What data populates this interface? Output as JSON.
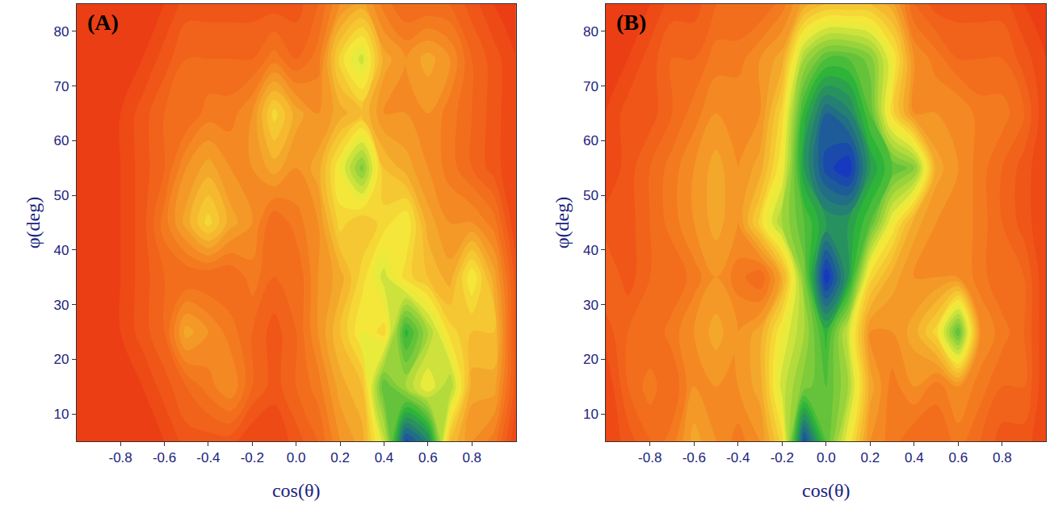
{
  "chart_data": [
    {
      "type": "contour",
      "label": "(A)",
      "x_label": "cos(θ)",
      "y_label": "φ(deg)",
      "xlim": [
        -1,
        1
      ],
      "ylim": [
        5,
        85
      ],
      "xticks": [
        -0.8,
        -0.6,
        -0.4,
        -0.2,
        {
          "value": 0,
          "label": "0.0"
        },
        0.2,
        0.4,
        0.6,
        0.8
      ],
      "yticks": [
        10,
        20,
        30,
        40,
        50,
        60,
        70,
        80
      ],
      "zlim": [
        0,
        1
      ],
      "x": [
        -1,
        -0.9,
        -0.8,
        -0.7,
        -0.6,
        -0.5,
        -0.4,
        -0.3,
        -0.2,
        -0.1,
        0,
        0.1,
        0.2,
        0.3,
        0.4,
        0.5,
        0.6,
        0.7,
        0.8,
        0.9,
        1
      ],
      "y": [
        5,
        15,
        25,
        35,
        45,
        55,
        65,
        75,
        85
      ],
      "z": [
        [
          0.1,
          0.1,
          0.1,
          0.1,
          0.1,
          0.15,
          0.15,
          0.15,
          0.1,
          0.1,
          0.15,
          0.2,
          0.3,
          0.35,
          0.55,
          0.95,
          0.85,
          0.4,
          0.3,
          0.25,
          0.1
        ],
        [
          0.1,
          0.1,
          0.1,
          0.1,
          0.15,
          0.2,
          0.25,
          0.3,
          0.2,
          0.15,
          0.2,
          0.25,
          0.35,
          0.4,
          0.7,
          0.6,
          0.5,
          0.6,
          0.35,
          0.35,
          0.15
        ],
        [
          0.1,
          0.1,
          0.1,
          0.15,
          0.2,
          0.35,
          0.3,
          0.25,
          0.2,
          0.15,
          0.2,
          0.3,
          0.4,
          0.5,
          0.45,
          0.75,
          0.6,
          0.45,
          0.4,
          0.4,
          0.15
        ],
        [
          0.1,
          0.1,
          0.1,
          0.15,
          0.2,
          0.2,
          0.2,
          0.2,
          0.25,
          0.2,
          0.2,
          0.3,
          0.35,
          0.45,
          0.55,
          0.45,
          0.4,
          0.35,
          0.5,
          0.35,
          0.15
        ],
        [
          0.1,
          0.1,
          0.1,
          0.15,
          0.25,
          0.35,
          0.45,
          0.35,
          0.3,
          0.2,
          0.25,
          0.3,
          0.45,
          0.4,
          0.45,
          0.5,
          0.35,
          0.3,
          0.3,
          0.25,
          0.1
        ],
        [
          0.1,
          0.1,
          0.1,
          0.15,
          0.2,
          0.3,
          0.35,
          0.3,
          0.3,
          0.35,
          0.3,
          0.35,
          0.5,
          0.65,
          0.4,
          0.35,
          0.3,
          0.25,
          0.2,
          0.15,
          0.1
        ],
        [
          0.1,
          0.1,
          0.1,
          0.15,
          0.2,
          0.2,
          0.25,
          0.25,
          0.3,
          0.45,
          0.35,
          0.3,
          0.35,
          0.4,
          0.3,
          0.3,
          0.3,
          0.25,
          0.2,
          0.15,
          0.1
        ],
        [
          0.1,
          0.1,
          0.1,
          0.1,
          0.15,
          0.2,
          0.2,
          0.2,
          0.2,
          0.25,
          0.2,
          0.25,
          0.45,
          0.55,
          0.35,
          0.3,
          0.35,
          0.3,
          0.2,
          0.15,
          0.1
        ],
        [
          0.1,
          0.1,
          0.1,
          0.1,
          0.1,
          0.15,
          0.15,
          0.15,
          0.15,
          0.15,
          0.15,
          0.2,
          0.3,
          0.35,
          0.25,
          0.2,
          0.2,
          0.2,
          0.15,
          0.1,
          0.1
        ]
      ]
    },
    {
      "type": "contour",
      "label": "(B)",
      "x_label": "cos(θ)",
      "y_label": "φ(deg)",
      "xlim": [
        -1,
        1
      ],
      "ylim": [
        5,
        85
      ],
      "xticks": [
        -0.8,
        -0.6,
        -0.4,
        -0.2,
        {
          "value": 0,
          "label": "0.0"
        },
        0.2,
        0.4,
        0.6,
        0.8
      ],
      "yticks": [
        10,
        20,
        30,
        40,
        50,
        60,
        70,
        80
      ],
      "zlim": [
        0,
        1
      ],
      "x": [
        -1,
        -0.9,
        -0.8,
        -0.7,
        -0.6,
        -0.5,
        -0.4,
        -0.3,
        -0.2,
        -0.1,
        0,
        0.1,
        0.2,
        0.3,
        0.4,
        0.5,
        0.6,
        0.7,
        0.8,
        0.9,
        1
      ],
      "y": [
        5,
        15,
        25,
        35,
        45,
        55,
        65,
        75,
        85
      ],
      "z": [
        [
          0.1,
          0.15,
          0.2,
          0.25,
          0.35,
          0.3,
          0.25,
          0.3,
          0.45,
          0.95,
          0.7,
          0.5,
          0.3,
          0.25,
          0.2,
          0.2,
          0.25,
          0.2,
          0.15,
          0.15,
          0.1
        ],
        [
          0.1,
          0.2,
          0.25,
          0.2,
          0.3,
          0.3,
          0.3,
          0.35,
          0.55,
          0.65,
          0.7,
          0.6,
          0.35,
          0.25,
          0.3,
          0.25,
          0.3,
          0.25,
          0.2,
          0.2,
          0.1
        ],
        [
          0.15,
          0.2,
          0.2,
          0.25,
          0.3,
          0.35,
          0.3,
          0.35,
          0.5,
          0.6,
          0.75,
          0.55,
          0.3,
          0.3,
          0.35,
          0.45,
          0.7,
          0.3,
          0.25,
          0.2,
          0.1
        ],
        [
          0.2,
          0.15,
          0.2,
          0.2,
          0.25,
          0.3,
          0.25,
          0.2,
          0.35,
          0.65,
          1.0,
          0.8,
          0.45,
          0.35,
          0.3,
          0.3,
          0.3,
          0.25,
          0.2,
          0.2,
          0.1
        ],
        [
          0.15,
          0.15,
          0.2,
          0.25,
          0.3,
          0.35,
          0.3,
          0.45,
          0.6,
          0.7,
          0.8,
          0.8,
          0.7,
          0.5,
          0.35,
          0.3,
          0.3,
          0.25,
          0.2,
          0.15,
          0.1
        ],
        [
          0.1,
          0.15,
          0.2,
          0.25,
          0.3,
          0.35,
          0.3,
          0.35,
          0.5,
          0.8,
          0.95,
          1.0,
          0.8,
          0.7,
          0.65,
          0.35,
          0.3,
          0.25,
          0.2,
          0.15,
          0.1
        ],
        [
          0.1,
          0.15,
          0.15,
          0.2,
          0.25,
          0.3,
          0.3,
          0.3,
          0.45,
          0.75,
          0.9,
          0.85,
          0.7,
          0.45,
          0.3,
          0.3,
          0.3,
          0.25,
          0.25,
          0.2,
          0.1
        ],
        [
          0.1,
          0.1,
          0.15,
          0.2,
          0.2,
          0.25,
          0.25,
          0.3,
          0.35,
          0.6,
          0.7,
          0.7,
          0.65,
          0.5,
          0.3,
          0.25,
          0.2,
          0.2,
          0.2,
          0.15,
          0.1
        ],
        [
          0.1,
          0.1,
          0.1,
          0.15,
          0.15,
          0.2,
          0.2,
          0.2,
          0.25,
          0.35,
          0.4,
          0.4,
          0.4,
          0.35,
          0.2,
          0.15,
          0.15,
          0.15,
          0.15,
          0.1,
          0.1
        ]
      ]
    }
  ]
}
